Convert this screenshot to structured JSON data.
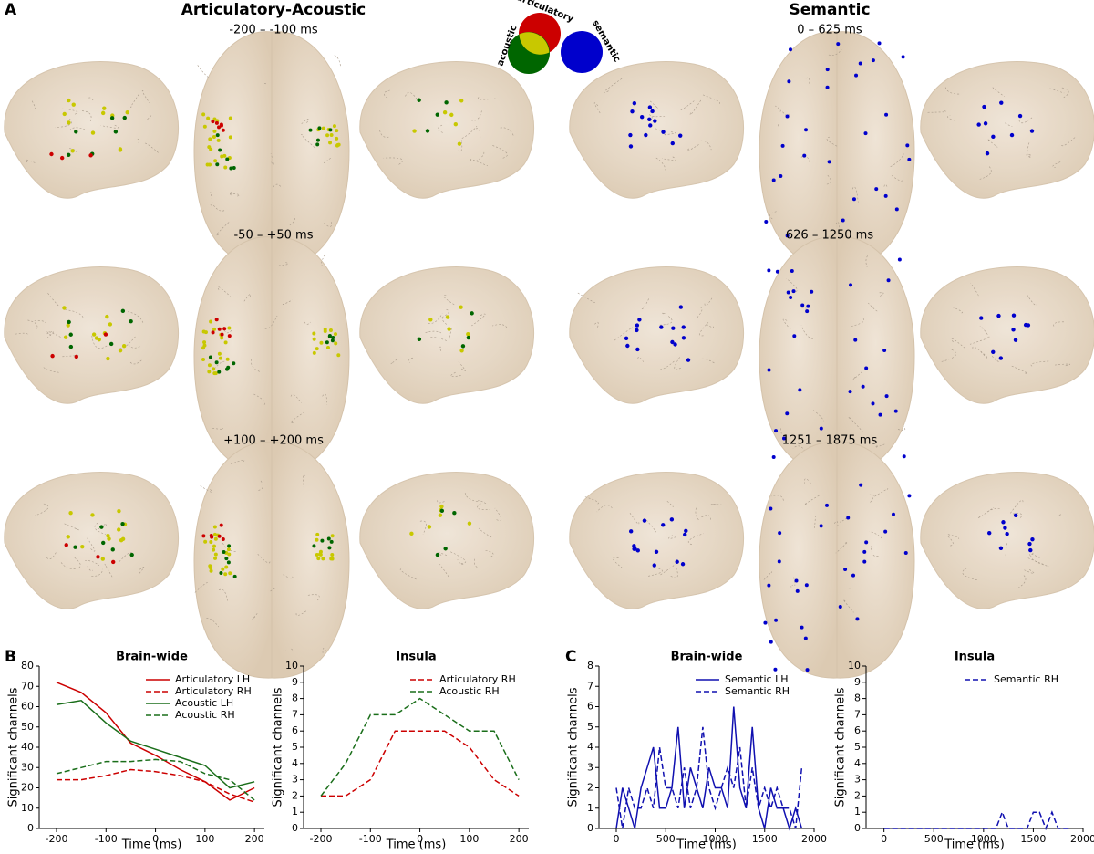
{
  "panel_letters": [
    "A",
    "B",
    "C"
  ],
  "brains": {
    "titles": [
      "Articulatory-Acoustic",
      "Semantic"
    ],
    "left_windows": [
      "-200 – -100 ms",
      "-50 – +50 ms",
      "+100 – +200 ms"
    ],
    "right_windows": [
      "0 – 625 ms",
      "626 – 1250 ms",
      "1251 – 1875 ms"
    ],
    "venn": {
      "labels": [
        "articulatory",
        "acoustic",
        "semantic"
      ],
      "colors": [
        "#cc0000",
        "#006600",
        "#0000cc"
      ],
      "overlap_color": "#c8c800"
    }
  },
  "chart_data": [
    {
      "type": "line",
      "title": "Brain-wide",
      "xlabel": "Time (ms)",
      "ylabel": "Significant channels",
      "x": [
        -200,
        -150,
        -100,
        -50,
        0,
        50,
        100,
        150,
        200
      ],
      "series": [
        {
          "name": "Articulatory LH",
          "color": "#cc0000",
          "linestyle": "solid",
          "values": [
            72,
            67,
            57,
            42,
            36,
            29,
            23,
            14,
            20
          ]
        },
        {
          "name": "Articulatory RH",
          "color": "#cc0000",
          "linestyle": "dashed",
          "values": [
            24,
            24,
            26,
            29,
            28,
            26,
            23,
            17,
            13
          ]
        },
        {
          "name": "Acoustic LH",
          "color": "#1a6e1a",
          "linestyle": "solid",
          "values": [
            61,
            63,
            52,
            43,
            39,
            35,
            31,
            20,
            23
          ]
        },
        {
          "name": "Acoustic RH",
          "color": "#1a6e1a",
          "linestyle": "dashed",
          "values": [
            27,
            30,
            33,
            33,
            34,
            33,
            27,
            24,
            14
          ]
        }
      ],
      "xlim": [
        -235,
        220
      ],
      "ylim": [
        0,
        80
      ],
      "xticks": [
        -200,
        -100,
        0,
        100,
        200
      ],
      "yticks": [
        0,
        10,
        20,
        30,
        40,
        50,
        60,
        70,
        80
      ],
      "legend": "upper right"
    },
    {
      "type": "line",
      "title": "Insula",
      "xlabel": "Time (ms)",
      "ylabel": "Significant channels",
      "x": [
        -200,
        -150,
        -100,
        -50,
        0,
        50,
        100,
        150,
        200
      ],
      "series": [
        {
          "name": "Articulatory RH",
          "color": "#cc0000",
          "linestyle": "dashed",
          "values": [
            2,
            2,
            3,
            6,
            6,
            6,
            5,
            3,
            2
          ]
        },
        {
          "name": "Acoustic RH",
          "color": "#1a6e1a",
          "linestyle": "dashed",
          "values": [
            2,
            4,
            7,
            7,
            8,
            7,
            6,
            6,
            3
          ]
        }
      ],
      "xlim": [
        -235,
        220
      ],
      "ylim": [
        0,
        10
      ],
      "xticks": [
        -200,
        -100,
        0,
        100,
        200
      ],
      "yticks": [
        0,
        1,
        2,
        3,
        4,
        5,
        6,
        7,
        8,
        9,
        10
      ],
      "legend": "upper right"
    },
    {
      "type": "line",
      "title": "Brain-wide",
      "xlabel": "Time (ms)",
      "ylabel": "Significant channels",
      "x": [
        0,
        62.5,
        125,
        187.5,
        250,
        312.5,
        375,
        437.5,
        500,
        562.5,
        625,
        687.5,
        750,
        812.5,
        875,
        937.5,
        1000,
        1062.5,
        1125,
        1187.5,
        1250,
        1312.5,
        1375,
        1437.5,
        1500,
        1562.5,
        1625,
        1687.5,
        1750,
        1812.5,
        1875
      ],
      "series": [
        {
          "name": "Semantic LH",
          "color": "#1010b0",
          "linestyle": "solid",
          "values": [
            0,
            2,
            1,
            0,
            2,
            3,
            4,
            1,
            1,
            2,
            5,
            1,
            3,
            2,
            1,
            3,
            2,
            2,
            1,
            6,
            2,
            1,
            5,
            1,
            0,
            2,
            1,
            1,
            0,
            1,
            0
          ]
        },
        {
          "name": "Semantic RH",
          "color": "#1010b0",
          "linestyle": "dashed",
          "values": [
            2,
            0,
            2,
            1,
            1,
            2,
            1,
            4,
            2,
            2,
            1,
            3,
            1,
            2,
            5,
            2,
            1,
            2,
            3,
            2,
            4,
            1,
            3,
            1,
            2,
            1,
            2,
            1,
            1,
            0,
            3
          ]
        }
      ],
      "xlim": [
        -175,
        2000
      ],
      "ylim": [
        0,
        8
      ],
      "xticks": [
        0,
        500,
        1000,
        1500,
        2000
      ],
      "yticks": [
        0,
        1,
        2,
        3,
        4,
        5,
        6,
        7,
        8
      ],
      "legend": "upper right"
    },
    {
      "type": "line",
      "title": "Insula",
      "xlabel": "Time (ms)",
      "ylabel": "Significant channels",
      "x": [
        0,
        62.5,
        125,
        187.5,
        250,
        312.5,
        375,
        437.5,
        500,
        562.5,
        625,
        687.5,
        750,
        812.5,
        875,
        937.5,
        1000,
        1062.5,
        1125,
        1187.5,
        1250,
        1312.5,
        1375,
        1437.5,
        1500,
        1562.5,
        1625,
        1687.5,
        1750,
        1812.5,
        1875
      ],
      "series": [
        {
          "name": "Semantic RH",
          "color": "#1010b0",
          "linestyle": "dashed",
          "values": [
            0,
            0,
            0,
            0,
            0,
            0,
            0,
            0,
            0,
            0,
            0,
            0,
            0,
            0,
            0,
            0,
            0,
            0,
            0,
            1,
            0,
            0,
            0,
            0,
            1,
            1,
            0,
            1,
            0,
            0,
            0
          ]
        }
      ],
      "xlim": [
        -180,
        2000
      ],
      "ylim": [
        0,
        10
      ],
      "xticks": [
        0,
        500,
        1000,
        1500,
        2000
      ],
      "yticks": [
        0,
        1,
        2,
        3,
        4,
        5,
        6,
        7,
        8,
        9,
        10
      ],
      "legend": "upper right"
    }
  ]
}
